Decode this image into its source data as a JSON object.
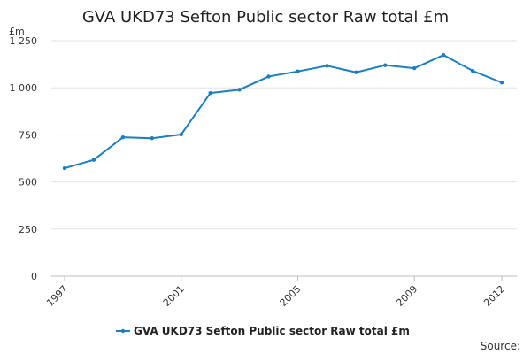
{
  "chart_data": {
    "type": "line",
    "title": "GVA UKD73 Sefton Public sector Raw total £m",
    "ylabel": "£m",
    "xlabel": "",
    "ylim": [
      0,
      1250
    ],
    "yticks": [
      0,
      250,
      500,
      750,
      1000,
      1250
    ],
    "ytick_labels": [
      "0",
      "250",
      "500",
      "750",
      "1 000",
      "1 250"
    ],
    "xlim": [
      1997,
      2012
    ],
    "xticks": [
      1997,
      2001,
      2005,
      2009,
      2012
    ],
    "xtick_labels": [
      "1997",
      "2001",
      "2005",
      "2009",
      "2012"
    ],
    "grid": true,
    "legend_position": "bottom",
    "color": "#1a7fc1",
    "series": [
      {
        "name": "GVA UKD73 Sefton Public sector Raw total £m",
        "x": [
          1997,
          1998,
          1999,
          2000,
          2001,
          2002,
          2003,
          2004,
          2005,
          2006,
          2007,
          2008,
          2009,
          2010,
          2011,
          2012
        ],
        "values": [
          573,
          617,
          737,
          732,
          752,
          972,
          990,
          1060,
          1087,
          1117,
          1082,
          1120,
          1104,
          1174,
          1090,
          1028
        ]
      }
    ]
  },
  "footer": {
    "source": "Source:"
  }
}
